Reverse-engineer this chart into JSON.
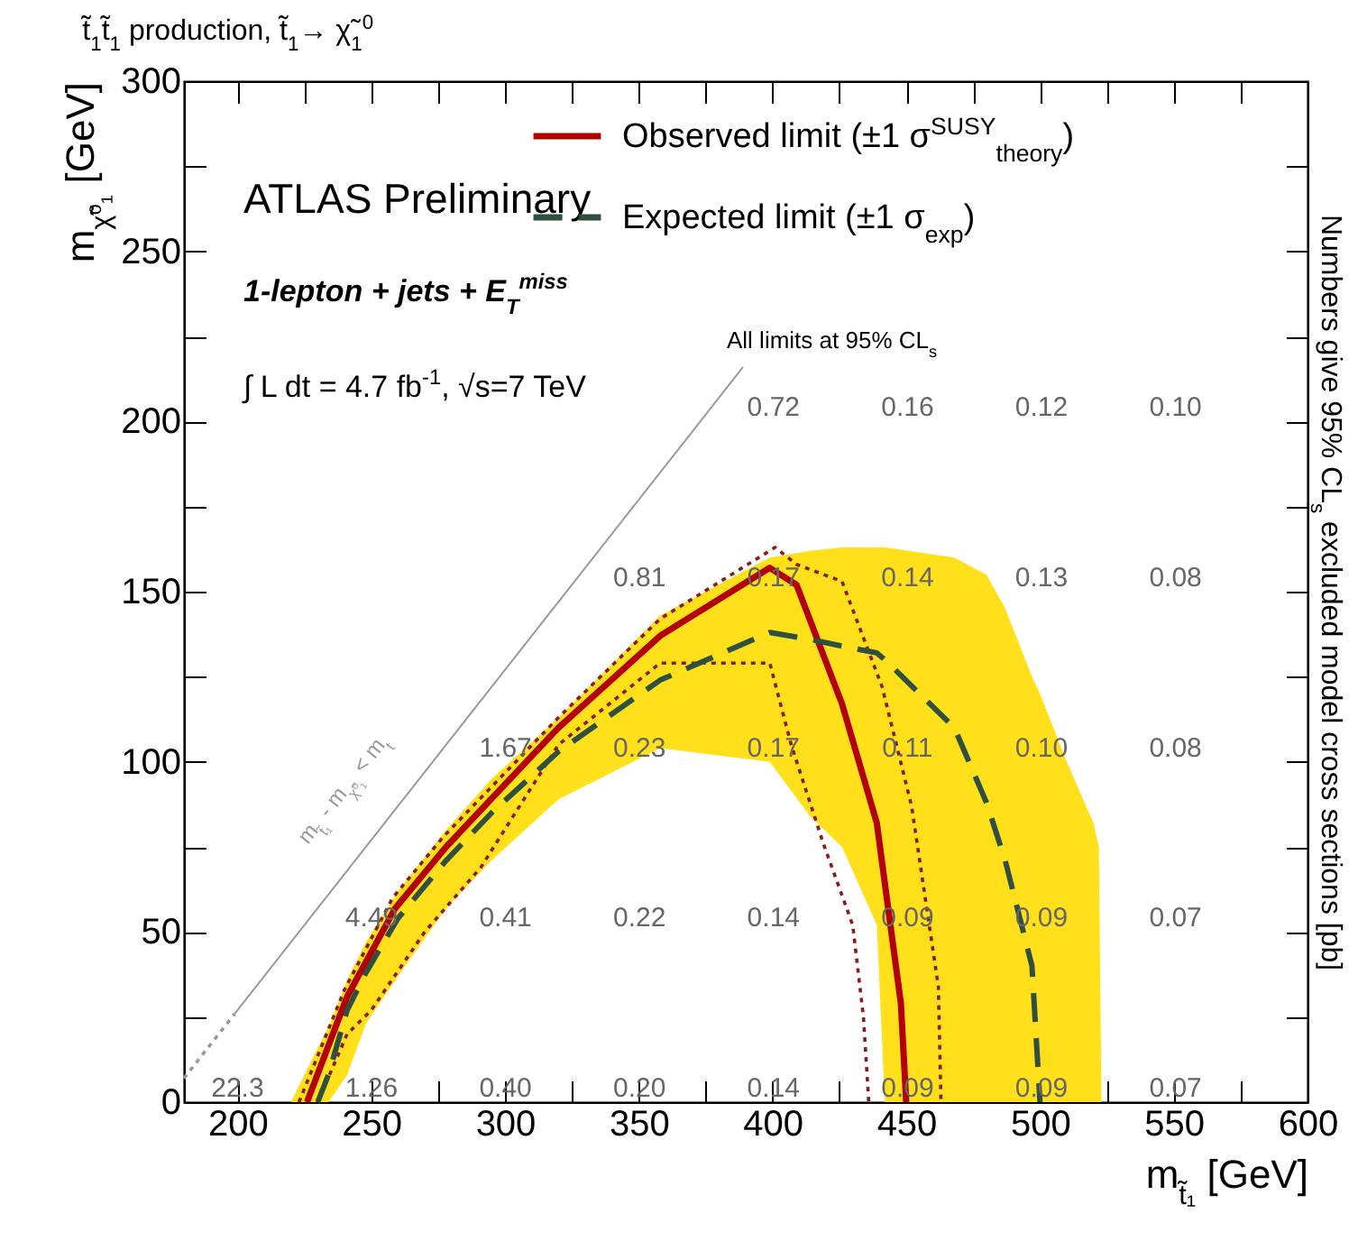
{
  "chart_data": {
    "type": "line",
    "title": "t̃$_{1}$t̃$_{1}$ production, t̃$_{1}$→ χ̃$_{1}$$^{0}$",
    "xlabel": "m$_{t̃₁}$ [GeV]",
    "ylabel": "m$_{χ̃⁰₁}$ [GeV]",
    "y2label": "Numbers give 95% CL$_{s}$ excluded model cross sections [pb]",
    "xlim": [
      180,
      600
    ],
    "xticks": [
      200,
      {
        "value": 225,
        "label": null
      },
      250,
      {
        "value": 275,
        "label": null
      },
      300,
      {
        "value": 325,
        "label": null
      },
      350,
      {
        "value": 375,
        "label": null
      },
      400,
      {
        "value": 425,
        "label": null
      },
      450,
      {
        "value": 475,
        "label": null
      },
      500,
      {
        "value": 525,
        "label": null
      },
      550,
      {
        "value": 575,
        "label": null
      },
      600
    ],
    "ylim": [
      0,
      300
    ],
    "yticks": [
      0,
      {
        "value": 25,
        "label": null
      },
      50,
      {
        "value": 75,
        "label": null
      },
      100,
      {
        "value": 125,
        "label": null
      },
      150,
      {
        "value": 175,
        "label": null
      },
      200,
      {
        "value": 225,
        "label": null
      },
      250,
      {
        "value": 275,
        "label": null
      },
      300
    ],
    "grid": false,
    "legend": "top right",
    "marker": "none",
    "series": [
      {
        "name": "Observed limit (±1 σ$^{SUSY}$$_{theory}$)",
        "color": "#b30000",
        "line_style": "solid",
        "x": [
          226,
          241,
          259,
          278,
          320,
          358,
          399,
          409,
          426,
          439,
          448,
          450
        ],
        "values": [
          0,
          31,
          57,
          75,
          110,
          137,
          157,
          152,
          117,
          82,
          29,
          0
        ]
      },
      {
        "color": "#8b1a1a",
        "line_style": "dotted",
        "x": [
          223,
          240,
          258,
          277,
          320,
          358,
          401,
          409,
          426,
          441,
          452,
          462,
          463
        ],
        "values": [
          0,
          33,
          60,
          78,
          113,
          142,
          163,
          158,
          153,
          122,
          87,
          34,
          0
        ]
      },
      {
        "color": "#8b1a1a",
        "line_style": "dotted",
        "x": [
          230,
          241,
          250,
          270,
          291,
          320,
          358,
          399,
          407,
          419,
          430,
          434,
          436
        ],
        "values": [
          0,
          20,
          27,
          50,
          69,
          105,
          129,
          129,
          105,
          76,
          52,
          25,
          0
        ]
      },
      {
        "name": "Expected limit (±1 σ$_{exp}$)",
        "color": "#2f4f3f",
        "line_style": "dashed",
        "x": [
          220,
          230,
          234,
          241,
          248,
          260,
          278,
          295,
          320,
          358,
          399,
          414,
          426,
          439,
          442,
          468,
          480,
          487,
          497,
          500,
          510,
          520,
          522,
          523
        ],
        "values": [
          null,
          0,
          8,
          27,
          38,
          54,
          71,
          85,
          103,
          124,
          138,
          136,
          134,
          132,
          130,
          110,
          88,
          71,
          40,
          0,
          null,
          null,
          null,
          null
        ],
        "lower": [
          0,
          0,
          0,
          8,
          23,
          37,
          57,
          71,
          89,
          104,
          100,
          84,
          75,
          52,
          0,
          0,
          0,
          0,
          0,
          0,
          0,
          0,
          0,
          0
        ],
        "upper": [
          0,
          16,
          22,
          36,
          47,
          62,
          80,
          95,
          113,
          143,
          160,
          162,
          163,
          163,
          163,
          160,
          155,
          145,
          125,
          120,
          100,
          82,
          75,
          0
        ]
      },
      {
        "color": "#999999",
        "line_style": "solid",
        "x": [
          199,
          389
        ],
        "values": [
          26,
          216
        ]
      },
      {
        "color": "#999999",
        "line_style": "dotted",
        "x": [
          180,
          199
        ],
        "values": [
          7,
          26
        ]
      }
    ],
    "annotations": [
      "ATLAS Preliminary",
      "1-lepton + jets + E$_{T}$$^{miss}$",
      "∫ L dt = 4.7 fb$^{-1}$, √s=7 TeV",
      "All limits at 95% CL$_{s}$",
      "m$_{t̃₁}$ - m$_{χ̃⁰₁}$ < m$_{t}$",
      "22.3",
      "1.26",
      "0.40",
      "0.20",
      "0.14",
      "0.09",
      "0.09",
      "0.07",
      "4.49",
      "0.41",
      "0.22",
      "0.14",
      "0.09",
      "0.09",
      "0.07",
      "1.67",
      "0.23",
      "0.17",
      "0.11",
      "0.10",
      "0.08",
      "0.81",
      "0.17",
      "0.14",
      "0.13",
      "0.08",
      "0.72",
      "0.16",
      "0.12",
      "0.10"
    ]
  }
}
